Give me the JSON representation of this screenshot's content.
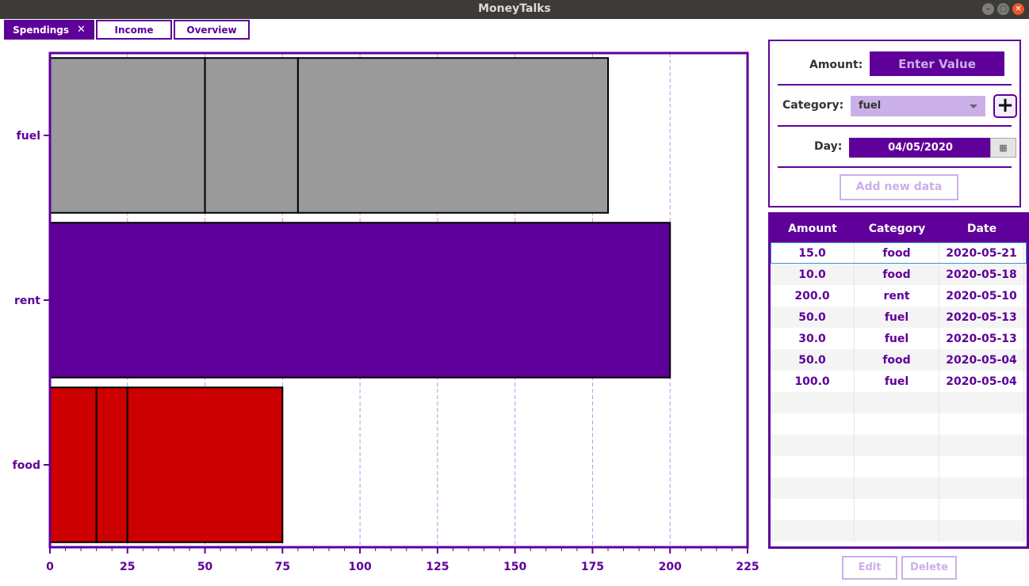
{
  "window": {
    "title": "MoneyTalks"
  },
  "tabs": [
    {
      "label": "Spendings",
      "close": "✕"
    },
    {
      "label": "Income"
    },
    {
      "label": "Overview"
    }
  ],
  "form": {
    "amount_label": "Amount:",
    "amount_placeholder": "Enter Value",
    "category_label": "Category:",
    "category_value": "fuel",
    "add_category_symbol": "+",
    "day_label": "Day:",
    "day_value": "04/05/2020",
    "add_button": "Add new data"
  },
  "table": {
    "headers": [
      "Amount",
      "Category",
      "Date"
    ],
    "rows": [
      [
        "15.0",
        "food",
        "2020-05-21"
      ],
      [
        "10.0",
        "food",
        "2020-05-18"
      ],
      [
        "200.0",
        "rent",
        "2020-05-10"
      ],
      [
        "50.0",
        "fuel",
        "2020-05-13"
      ],
      [
        "30.0",
        "fuel",
        "2020-05-13"
      ],
      [
        "50.0",
        "food",
        "2020-05-04"
      ],
      [
        "100.0",
        "fuel",
        "2020-05-04"
      ]
    ],
    "empty_rows": 7
  },
  "actions": {
    "edit": "Edit",
    "delete": "Delete"
  },
  "colors": {
    "accent": "#5e0099",
    "accent_light": "#cbb0e8",
    "fuel": "#9a9a9a",
    "rent": "#5e0099",
    "food": "#cc0000"
  },
  "chart_data": {
    "type": "bar",
    "orientation": "horizontal",
    "stacked": true,
    "categories": [
      "fuel",
      "rent",
      "food"
    ],
    "segments": {
      "fuel": [
        50,
        30,
        100
      ],
      "rent": [
        200
      ],
      "food": [
        15,
        10,
        50
      ]
    },
    "xlim": [
      0,
      225
    ],
    "xticks": [
      0,
      25,
      50,
      75,
      100,
      125,
      150,
      175,
      200,
      225
    ],
    "grid": "vertical dashed"
  }
}
